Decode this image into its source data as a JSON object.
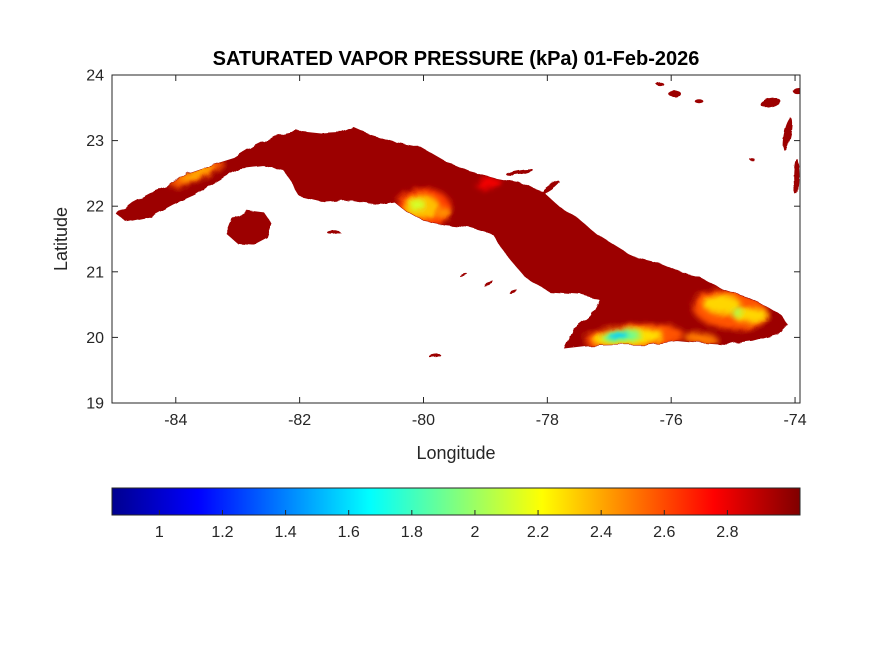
{
  "chart_data": {
    "type": "heatmap",
    "title": "SATURATED VAPOR PRESSURE (kPa) 01-Feb-2026",
    "xlabel": "Longitude",
    "ylabel": "Latitude",
    "xlim": [
      -85.03,
      -73.92
    ],
    "ylim": [
      19,
      24
    ],
    "xticks": [
      -84,
      -82,
      -80,
      -78,
      -76,
      -74
    ],
    "yticks": [
      19,
      20,
      21,
      22,
      23,
      24
    ],
    "grid": false,
    "axis_color": "#262626",
    "background_color": "#ffffff",
    "colorbar": {
      "orientation": "horizontal",
      "ticks": [
        1,
        1.2,
        1.4,
        1.6,
        1.8,
        2,
        2.2,
        2.4,
        2.6,
        2.8
      ],
      "value_range": [
        0.85,
        3.03
      ],
      "colormap": "jet",
      "stops": [
        {
          "p": 0,
          "color": "#00008F"
        },
        {
          "p": 0.125,
          "color": "#0000FF"
        },
        {
          "p": 0.375,
          "color": "#00FFFF"
        },
        {
          "p": 0.625,
          "color": "#FFFF00"
        },
        {
          "p": 0.875,
          "color": "#FF0000"
        },
        {
          "p": 1,
          "color": "#800000"
        }
      ]
    },
    "land_value_kpa": 2.97,
    "coastlines": {
      "cuba": [
        [
          -84.95,
          21.88
        ],
        [
          -84.7,
          22.06
        ],
        [
          -84.42,
          22.2
        ],
        [
          -84.12,
          22.3
        ],
        [
          -83.8,
          22.5
        ],
        [
          -83.42,
          22.62
        ],
        [
          -83.05,
          22.73
        ],
        [
          -82.72,
          22.92
        ],
        [
          -82.4,
          23.07
        ],
        [
          -82.05,
          23.14
        ],
        [
          -81.65,
          23.1
        ],
        [
          -81.3,
          23.12
        ],
        [
          -81.12,
          23.19
        ],
        [
          -80.85,
          23.08
        ],
        [
          -80.45,
          22.97
        ],
        [
          -80.05,
          22.9
        ],
        [
          -79.65,
          22.68
        ],
        [
          -79.25,
          22.52
        ],
        [
          -78.85,
          22.42
        ],
        [
          -78.45,
          22.35
        ],
        [
          -78.08,
          22.22
        ],
        [
          -77.8,
          21.98
        ],
        [
          -77.52,
          21.82
        ],
        [
          -77.22,
          21.58
        ],
        [
          -76.95,
          21.42
        ],
        [
          -76.6,
          21.22
        ],
        [
          -76.18,
          21.12
        ],
        [
          -75.82,
          20.98
        ],
        [
          -75.55,
          20.92
        ],
        [
          -75.18,
          20.73
        ],
        [
          -74.82,
          20.62
        ],
        [
          -74.48,
          20.48
        ],
        [
          -74.22,
          20.33
        ],
        [
          -74.13,
          20.2
        ],
        [
          -74.28,
          20.05
        ],
        [
          -74.68,
          19.95
        ],
        [
          -75.12,
          19.9
        ],
        [
          -75.58,
          19.93
        ],
        [
          -75.92,
          19.96
        ],
        [
          -76.4,
          19.89
        ],
        [
          -76.9,
          19.89
        ],
        [
          -77.35,
          19.88
        ],
        [
          -77.72,
          19.84
        ],
        [
          -77.58,
          20.12
        ],
        [
          -77.3,
          20.32
        ],
        [
          -77.15,
          20.58
        ],
        [
          -77.45,
          20.66
        ],
        [
          -77.95,
          20.69
        ],
        [
          -78.35,
          20.92
        ],
        [
          -78.65,
          21.25
        ],
        [
          -78.88,
          21.58
        ],
        [
          -79.25,
          21.68
        ],
        [
          -79.65,
          21.72
        ],
        [
          -80.0,
          21.78
        ],
        [
          -80.28,
          21.93
        ],
        [
          -80.48,
          22.08
        ],
        [
          -80.72,
          22.04
        ],
        [
          -81.0,
          22.07
        ],
        [
          -81.18,
          22.1
        ],
        [
          -81.6,
          22.07
        ],
        [
          -82.0,
          22.16
        ],
        [
          -82.25,
          22.55
        ],
        [
          -82.58,
          22.62
        ],
        [
          -82.98,
          22.58
        ],
        [
          -83.35,
          22.38
        ],
        [
          -83.7,
          22.18
        ],
        [
          -84.05,
          22.03
        ],
        [
          -84.42,
          21.84
        ],
        [
          -84.8,
          21.77
        ]
      ],
      "isla_de_la_juventud": [
        [
          -83.17,
          21.58
        ],
        [
          -83.08,
          21.8
        ],
        [
          -82.85,
          21.93
        ],
        [
          -82.58,
          21.9
        ],
        [
          -82.45,
          21.72
        ],
        [
          -82.52,
          21.52
        ],
        [
          -82.72,
          21.42
        ],
        [
          -83.0,
          21.44
        ]
      ]
    },
    "islets": [
      {
        "lon": -79.82,
        "lat": 19.72,
        "rx": 0.1,
        "ry": 0.025,
        "rot": -8
      },
      {
        "lon": -79.35,
        "lat": 20.95,
        "rx": 0.07,
        "ry": 0.02,
        "rot": -15
      },
      {
        "lon": -78.95,
        "lat": 20.82,
        "rx": 0.09,
        "ry": 0.022,
        "rot": -20
      },
      {
        "lon": -78.55,
        "lat": 20.7,
        "rx": 0.07,
        "ry": 0.02,
        "rot": -20
      },
      {
        "lon": -81.45,
        "lat": 21.6,
        "rx": 0.1,
        "ry": 0.025,
        "rot": -5
      },
      {
        "lon": -78.45,
        "lat": 22.52,
        "rx": 0.22,
        "ry": 0.035,
        "rot": -10
      },
      {
        "lon": -77.95,
        "lat": 22.28,
        "rx": 0.18,
        "ry": 0.035,
        "rot": -35
      },
      {
        "lon": -75.95,
        "lat": 23.72,
        "rx": 0.1,
        "ry": 0.05,
        "rot": 0
      },
      {
        "lon": -75.55,
        "lat": 23.6,
        "rx": 0.07,
        "ry": 0.03,
        "rot": 0
      },
      {
        "lon": -76.18,
        "lat": 23.86,
        "rx": 0.06,
        "ry": 0.03,
        "rot": 0
      },
      {
        "lon": -74.4,
        "lat": 23.58,
        "rx": 0.16,
        "ry": 0.06,
        "rot": -15
      },
      {
        "lon": -74.12,
        "lat": 23.1,
        "rx": 0.06,
        "ry": 0.25,
        "rot": 12
      },
      {
        "lon": -73.98,
        "lat": 22.45,
        "rx": 0.05,
        "ry": 0.28,
        "rot": 0
      },
      {
        "lon": -73.95,
        "lat": 23.75,
        "rx": 0.08,
        "ry": 0.05,
        "rot": 0
      },
      {
        "lon": -74.7,
        "lat": 22.72,
        "rx": 0.04,
        "ry": 0.02,
        "rot": 0
      }
    ],
    "low_value_patches": [
      {
        "lon": -83.66,
        "lat": 22.5,
        "rx": 0.48,
        "ry": 0.1,
        "rot": -24,
        "value": 2.55
      },
      {
        "lon": -83.66,
        "lat": 22.5,
        "rx": 0.3,
        "ry": 0.055,
        "rot": -24,
        "value": 2.38
      },
      {
        "lon": -80.0,
        "lat": 21.97,
        "rx": 0.45,
        "ry": 0.3,
        "rot": 0,
        "value": 2.62
      },
      {
        "lon": -80.04,
        "lat": 21.99,
        "rx": 0.3,
        "ry": 0.19,
        "rot": 0,
        "value": 2.35
      },
      {
        "lon": -80.1,
        "lat": 22.02,
        "rx": 0.13,
        "ry": 0.09,
        "rot": 0,
        "value": 2.12
      },
      {
        "lon": -79.68,
        "lat": 21.9,
        "rx": 0.13,
        "ry": 0.08,
        "rot": 0,
        "value": 2.45
      },
      {
        "lon": -78.95,
        "lat": 22.35,
        "rx": 0.2,
        "ry": 0.08,
        "rot": -10,
        "value": 2.78
      },
      {
        "lon": -76.6,
        "lat": 20.0,
        "rx": 0.8,
        "ry": 0.2,
        "rot": -4,
        "value": 2.58
      },
      {
        "lon": -76.7,
        "lat": 20.0,
        "rx": 0.58,
        "ry": 0.13,
        "rot": -4,
        "value": 2.28
      },
      {
        "lon": -76.8,
        "lat": 20.02,
        "rx": 0.32,
        "ry": 0.085,
        "rot": -4,
        "value": 1.9
      },
      {
        "lon": -76.86,
        "lat": 20.03,
        "rx": 0.16,
        "ry": 0.05,
        "rot": -4,
        "value": 1.55
      },
      {
        "lon": -75.52,
        "lat": 19.98,
        "rx": 0.28,
        "ry": 0.09,
        "rot": 6,
        "value": 2.5
      },
      {
        "lon": -75.05,
        "lat": 20.42,
        "rx": 0.62,
        "ry": 0.3,
        "rot": 8,
        "value": 2.58
      },
      {
        "lon": -75.18,
        "lat": 20.5,
        "rx": 0.3,
        "ry": 0.15,
        "rot": 0,
        "value": 2.3
      },
      {
        "lon": -74.72,
        "lat": 20.34,
        "rx": 0.28,
        "ry": 0.12,
        "rot": 0,
        "value": 2.3
      },
      {
        "lon": -74.93,
        "lat": 20.38,
        "rx": 0.1,
        "ry": 0.06,
        "rot": 0,
        "value": 2.05
      }
    ]
  }
}
